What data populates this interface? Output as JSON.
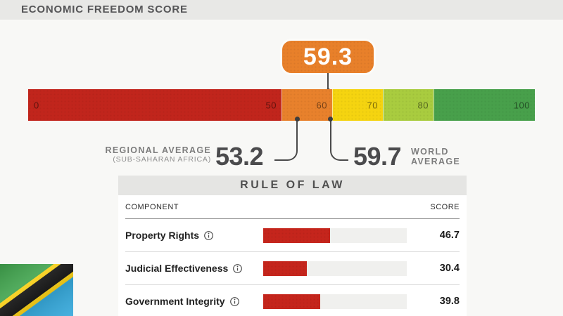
{
  "header": {
    "title": "ECONOMIC FREEDOM SCORE"
  },
  "gauge": {
    "score": "59.3",
    "badge_color": "#E8802A",
    "scale": {
      "zero_label": "0",
      "segments": [
        {
          "name": "0-50",
          "from": 0,
          "to": 50,
          "label": "50",
          "color": "#C1251C"
        },
        {
          "name": "50-60",
          "from": 50,
          "to": 60,
          "label": "60",
          "color": "#E8812C"
        },
        {
          "name": "60-70",
          "from": 60,
          "to": 70,
          "label": "70",
          "color": "#F5D410"
        },
        {
          "name": "70-80",
          "from": 70,
          "to": 80,
          "label": "80",
          "color": "#A9CC3F"
        },
        {
          "name": "80-100",
          "from": 80,
          "to": 100,
          "label": "100",
          "color": "#48A04B"
        }
      ]
    },
    "regional_average": {
      "label": "REGIONAL AVERAGE",
      "sublabel": "(SUB-SAHARAN AFRICA)",
      "value": "53.2"
    },
    "world_average": {
      "value": "59.7",
      "label_line1": "WORLD",
      "label_line2": "AVERAGE"
    }
  },
  "table": {
    "title": "RULE OF LAW",
    "columns": {
      "component": "COMPONENT",
      "score": "SCORE"
    },
    "bar_color": "#C5251C",
    "track_color": "#F0F0EE",
    "rows": [
      {
        "label": "Property Rights",
        "score": "46.7",
        "value": 46.7
      },
      {
        "label": "Judicial Effectiveness",
        "score": "30.4",
        "value": 30.4
      },
      {
        "label": "Government Integrity",
        "score": "39.8",
        "value": 39.8
      }
    ]
  },
  "flag": {
    "country": "Tanzania",
    "colors": {
      "green": "#3FA24C",
      "blue": "#38AADC",
      "yellow": "#FBD116",
      "black": "#161616"
    }
  },
  "chart_data": [
    {
      "type": "bar",
      "title": "ECONOMIC FREEDOM SCORE",
      "subtitle": "gauge scale 0-100 with colored bands",
      "x": [
        "country_score",
        "regional_average_sub_saharan_africa",
        "world_average"
      ],
      "values": [
        59.3,
        53.2,
        59.7
      ],
      "xlabel": "",
      "ylabel": "score",
      "ylim": [
        0,
        100
      ],
      "bands": [
        {
          "range": [
            0,
            50
          ],
          "color": "#C1251C"
        },
        {
          "range": [
            50,
            60
          ],
          "color": "#E8812C"
        },
        {
          "range": [
            60,
            70
          ],
          "color": "#F5D410"
        },
        {
          "range": [
            70,
            80
          ],
          "color": "#A9CC3F"
        },
        {
          "range": [
            80,
            100
          ],
          "color": "#48A04B"
        }
      ]
    },
    {
      "type": "bar",
      "title": "RULE OF LAW",
      "categories": [
        "Property Rights",
        "Judicial Effectiveness",
        "Government Integrity"
      ],
      "values": [
        46.7,
        30.4,
        39.8
      ],
      "xlabel": "COMPONENT",
      "ylabel": "SCORE",
      "ylim": [
        0,
        100
      ],
      "bar_color": "#C5251C"
    }
  ]
}
